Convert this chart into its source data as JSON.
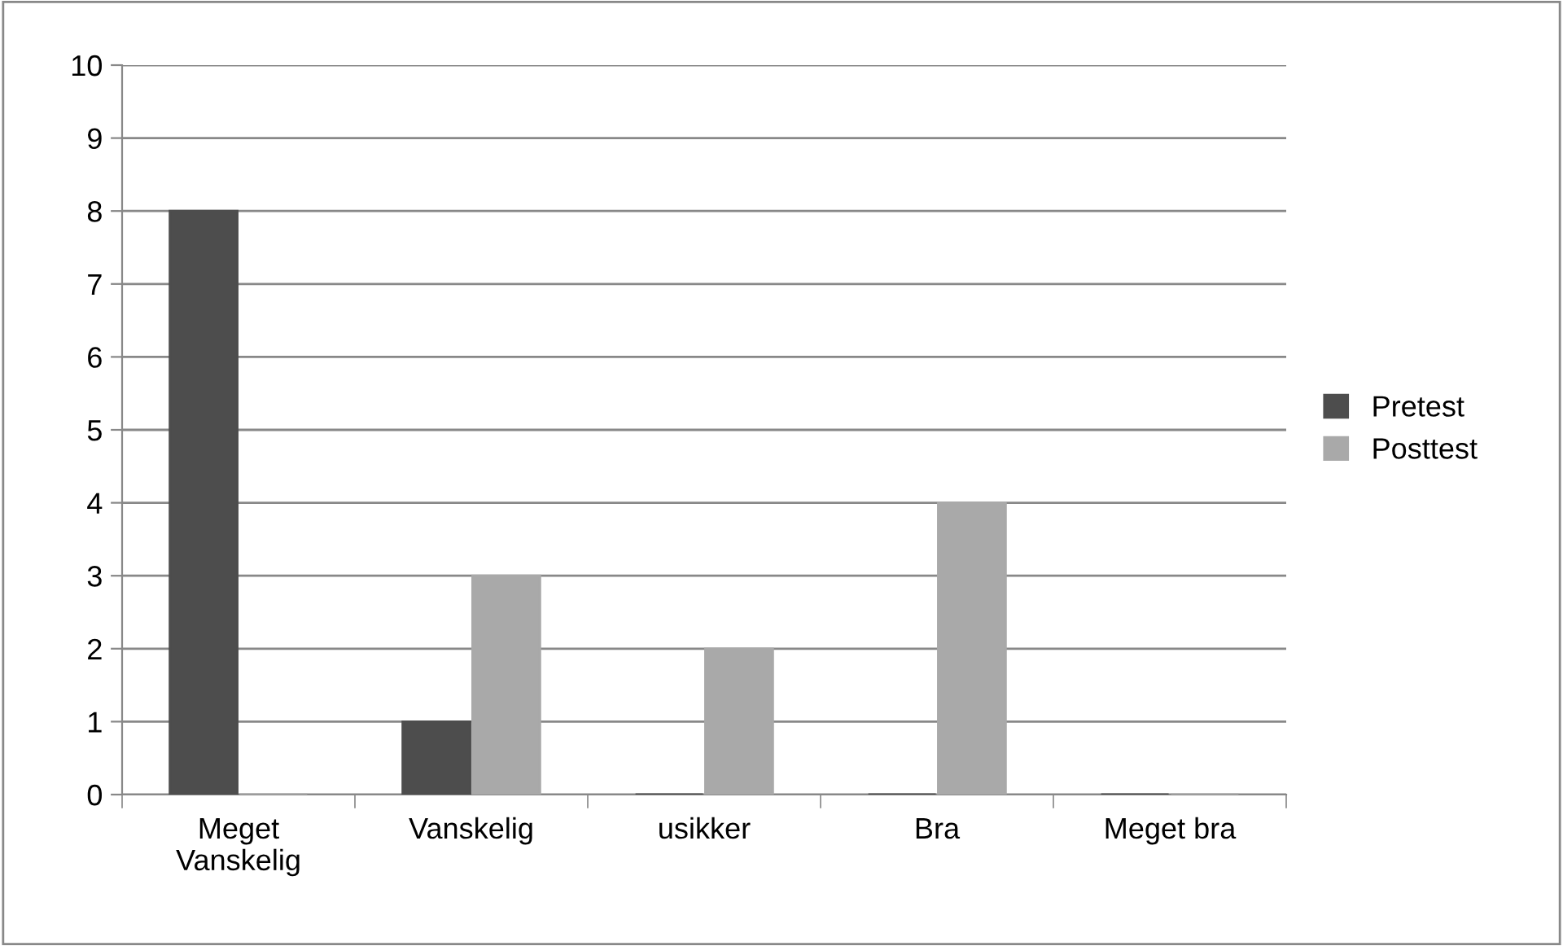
{
  "chart_data": {
    "type": "bar",
    "categories": [
      "Meget Vanskelig",
      "Vanskelig",
      "usikker",
      "Bra",
      "Meget bra"
    ],
    "series": [
      {
        "name": "Pretest",
        "color": "#4d4d4d",
        "values": [
          8,
          1,
          0,
          0,
          0
        ]
      },
      {
        "name": "Posttest",
        "color": "#a9a9a9",
        "values": [
          0,
          3,
          2,
          4,
          0
        ]
      }
    ],
    "ylim": [
      0,
      10
    ],
    "yticks": [
      0,
      1,
      2,
      3,
      4,
      5,
      6,
      7,
      8,
      9,
      10
    ],
    "grid": "y",
    "legend": "right"
  }
}
